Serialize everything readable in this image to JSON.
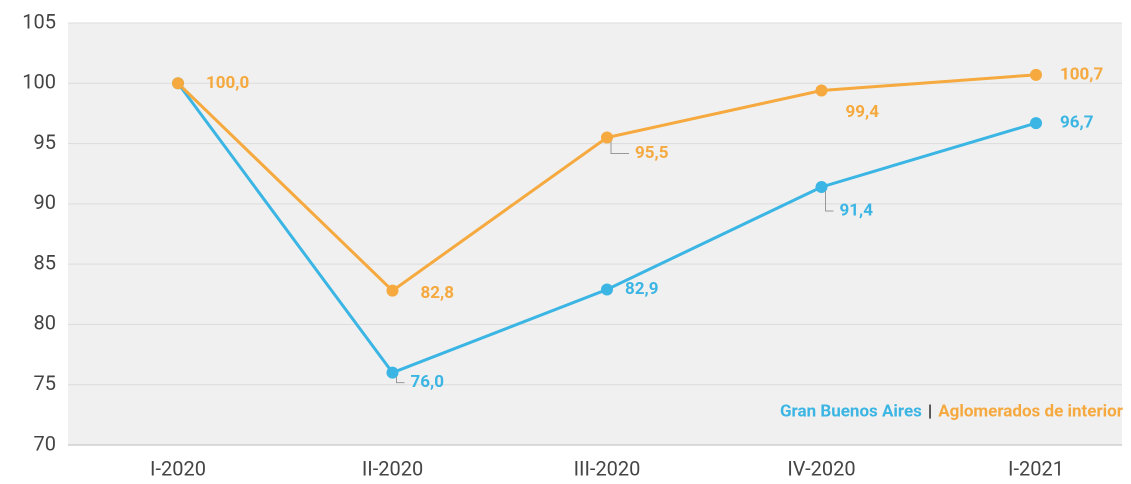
{
  "chart_data": {
    "type": "line",
    "categories": [
      "I-2020",
      "II-2020",
      "III-2020",
      "IV-2020",
      "I-2021"
    ],
    "series": [
      {
        "name": "Gran Buenos Aires",
        "color": "#3bb5e3",
        "values": [
          100,
          76.0,
          82.9,
          91.4,
          96.7
        ],
        "value_labels": [
          null,
          "76,0",
          "82,9",
          "91,4",
          "96,7"
        ]
      },
      {
        "name": "Aglomerados de interior",
        "color": "#f5a93e",
        "values": [
          100,
          82.8,
          95.5,
          99.4,
          100.7
        ],
        "value_labels": [
          "100,0",
          "82,8",
          "95,5",
          "99,4",
          "100,7"
        ]
      }
    ],
    "legend_separator": "|",
    "ylim": [
      70,
      105
    ],
    "yticks": [
      70,
      75,
      80,
      85,
      90,
      95,
      100,
      105
    ],
    "grid": true,
    "legend": "lower right"
  }
}
